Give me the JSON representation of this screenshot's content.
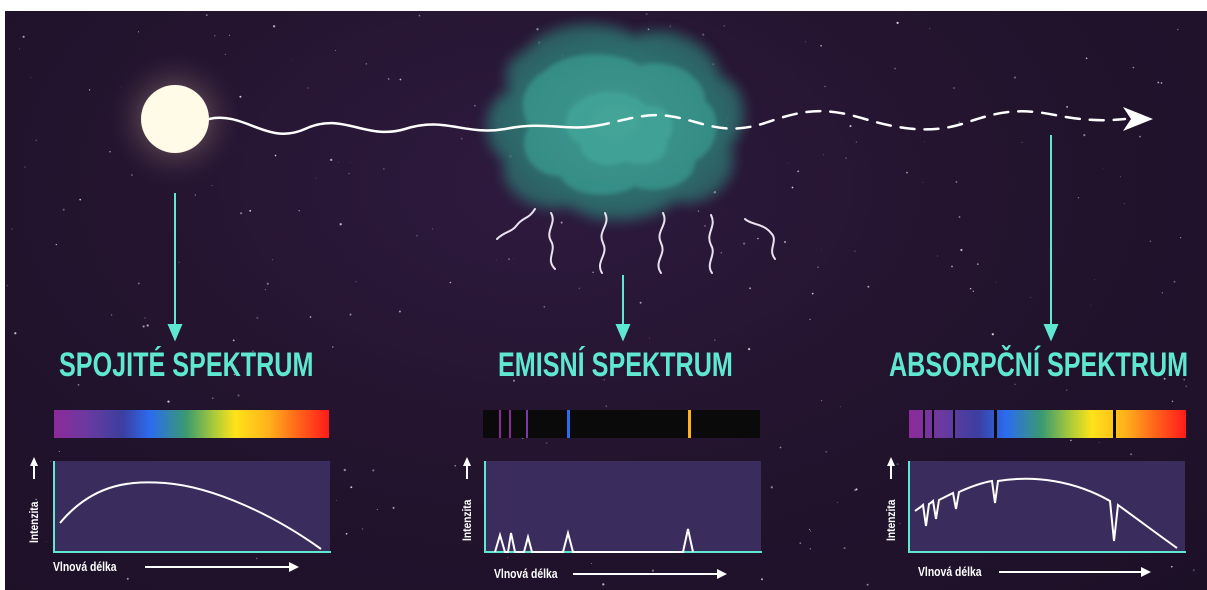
{
  "panels": [
    {
      "title": "SPOJITÉ SPEKTRUM",
      "xlabel": "Vlnová délka",
      "ylabel": "Intenzita"
    },
    {
      "title": "EMISNÍ SPEKTRUM",
      "xlabel": "Vlnová délka",
      "ylabel": "Intenzita"
    },
    {
      "title": "ABSORPČNÍ SPEKTRUM",
      "xlabel": "Vlnová délka",
      "ylabel": "Intenzita"
    }
  ],
  "colors": {
    "accent": "#5ee8d2",
    "background": "#24142f",
    "cloud": "#3fa89a",
    "star": "#fffbe6"
  },
  "icons": [
    "star-icon",
    "gas-cloud-icon",
    "light-wave-icon",
    "arrow-head-icon"
  ]
}
